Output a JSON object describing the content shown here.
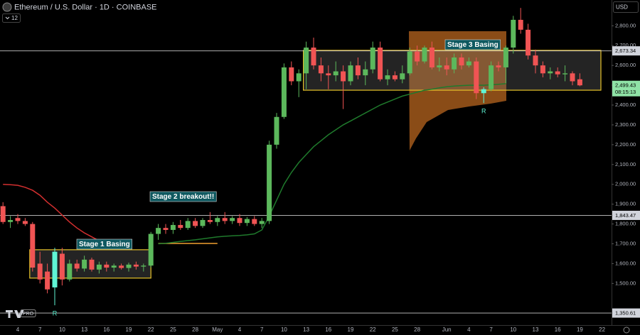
{
  "header": {
    "symbol": "Ethereum / U.S. Dollar · 1D · COINBASE",
    "indicators": "12",
    "currency": "USD",
    "badge": "PRO"
  },
  "chart_data": {
    "type": "candlestick",
    "categories": [
      null,
      null,
      "4",
      null,
      null,
      "7",
      null,
      null,
      "10",
      null,
      null,
      "13",
      null,
      null,
      "16",
      null,
      null,
      "19",
      null,
      null,
      "22",
      null,
      null,
      "25",
      null,
      null,
      "28",
      null,
      null,
      "May",
      null,
      null,
      "4",
      null,
      null,
      "7",
      null,
      null,
      "10",
      null,
      null,
      "13",
      null,
      null,
      "16",
      null,
      null,
      "19",
      null,
      null,
      "22",
      null,
      null,
      "25",
      null,
      null,
      "28",
      null,
      null,
      null,
      "Jun",
      null,
      null,
      "4",
      null,
      null,
      "7",
      null,
      null,
      "10",
      null,
      null,
      "13",
      null,
      null,
      "16",
      null,
      null,
      "19",
      null,
      null,
      "22"
    ],
    "open": [
      1890,
      1810,
      1830,
      1815,
      1800,
      1600,
      1560,
      1480,
      1650,
      1520,
      1600,
      1575,
      1620,
      1570,
      1595,
      1580,
      1590,
      1578,
      1595,
      1585,
      1590,
      1750,
      1780,
      1770,
      1795,
      1780,
      1815,
      1790,
      1820,
      1810,
      1830,
      1815,
      1830,
      1805,
      1825,
      1800,
      1815,
      2200,
      2340,
      2590,
      2520,
      2560,
      2690,
      2600,
      2560,
      2550,
      2570,
      2520,
      2600,
      2550,
      2580,
      2690,
      2530,
      2550,
      2530,
      2560,
      2670,
      2620,
      2690,
      2590,
      2600,
      2580,
      2640,
      2600,
      2620,
      2460,
      2480,
      2600,
      2590,
      2690,
      2830,
      2780,
      2650,
      2600,
      2560,
      2570,
      2555,
      2560,
      2530,
      null,
      null,
      null
    ],
    "high": [
      1910,
      1840,
      1850,
      1830,
      1810,
      1660,
      1600,
      1680,
      1680,
      1620,
      1620,
      1640,
      1630,
      1610,
      1610,
      1600,
      1600,
      1605,
      1610,
      1600,
      1760,
      1800,
      1800,
      1810,
      1820,
      1830,
      1830,
      1830,
      1860,
      1840,
      1860,
      1840,
      1850,
      1835,
      1840,
      1830,
      2220,
      2360,
      2610,
      2620,
      2580,
      2720,
      2740,
      2640,
      2600,
      2620,
      2600,
      2620,
      2640,
      2620,
      2720,
      2720,
      2580,
      2570,
      2600,
      2690,
      2700,
      2700,
      2720,
      2640,
      2640,
      2660,
      2660,
      2640,
      2640,
      2490,
      2620,
      2620,
      2700,
      2850,
      2890,
      2810,
      2680,
      2620,
      2590,
      2590,
      2600,
      2570,
      2560,
      null,
      null,
      null
    ],
    "low": [
      1800,
      1780,
      1800,
      1790,
      1560,
      1500,
      1450,
      1390,
      1490,
      1510,
      1560,
      1560,
      1560,
      1550,
      1560,
      1560,
      1570,
      1560,
      1570,
      1560,
      1580,
      1720,
      1750,
      1750,
      1770,
      1770,
      1780,
      1780,
      1800,
      1790,
      1800,
      1800,
      1790,
      1790,
      1790,
      1780,
      1800,
      2180,
      2330,
      2500,
      2440,
      2480,
      2580,
      2520,
      2480,
      2520,
      2380,
      2500,
      2530,
      2500,
      2560,
      2520,
      2500,
      2520,
      2510,
      2550,
      2600,
      2610,
      2580,
      2570,
      2550,
      2560,
      2580,
      2590,
      2430,
      2410,
      2470,
      2570,
      2510,
      2660,
      2760,
      2630,
      2560,
      2540,
      2530,
      2540,
      2520,
      2500,
      2495,
      null,
      null,
      null
    ],
    "close": [
      1810,
      1820,
      1815,
      1800,
      1580,
      1520,
      1470,
      1660,
      1520,
      1600,
      1575,
      1620,
      1570,
      1595,
      1580,
      1590,
      1578,
      1595,
      1585,
      1590,
      1750,
      1780,
      1770,
      1795,
      1780,
      1815,
      1790,
      1820,
      1810,
      1830,
      1815,
      1830,
      1805,
      1825,
      1800,
      1815,
      2200,
      2340,
      2590,
      2520,
      2560,
      2690,
      2600,
      2560,
      2550,
      2570,
      2520,
      2600,
      2550,
      2580,
      2690,
      2530,
      2550,
      2530,
      2560,
      2670,
      2620,
      2690,
      2590,
      2600,
      2580,
      2640,
      2600,
      2620,
      2460,
      2480,
      2600,
      2590,
      2690,
      2830,
      2780,
      2650,
      2600,
      2560,
      2570,
      2555,
      2560,
      2520,
      2499.43,
      null,
      null,
      null
    ],
    "up_color": "#5cb85c",
    "down_color": "#f05454",
    "reversal_color": "#5ff5d5",
    "reversals": [
      {
        "index": 7,
        "text": "R"
      },
      {
        "index": 65,
        "text": "R"
      }
    ],
    "lines": [
      {
        "color": "#d32f2f",
        "values": [
          2000,
          1998,
          1995,
          1985,
          1970,
          1945,
          1910,
          1880,
          1845,
          1810,
          1780,
          1755,
          1735,
          1715,
          1700,
          null,
          null,
          null,
          null,
          null,
          null,
          null,
          null,
          null,
          null,
          null,
          null,
          null,
          null,
          null,
          null,
          null,
          null,
          null,
          null,
          null,
          null,
          null,
          null,
          null,
          null,
          null,
          null,
          null,
          null,
          null,
          null,
          null,
          null,
          null,
          null,
          null,
          null,
          null,
          null,
          null,
          null,
          null,
          null,
          null,
          null,
          null,
          null,
          null,
          null,
          null,
          null,
          null,
          null,
          null,
          null,
          null,
          null,
          null,
          null,
          null,
          null,
          null,
          null,
          null,
          null,
          null
        ]
      },
      {
        "color": "#1f7a2c",
        "values": [
          null,
          null,
          null,
          null,
          null,
          null,
          null,
          null,
          null,
          null,
          null,
          null,
          null,
          null,
          null,
          null,
          null,
          null,
          null,
          null,
          null,
          1700,
          1703,
          1707,
          1712,
          1716,
          1720,
          1725,
          1730,
          1735,
          1738,
          1740,
          1742,
          1745,
          1750,
          1770,
          1840,
          1920,
          2000,
          2060,
          2110,
          2150,
          2190,
          2220,
          2250,
          2275,
          2300,
          2320,
          2340,
          2360,
          2380,
          2400,
          2415,
          2430,
          2445,
          2455,
          2465,
          2475,
          2480,
          2487,
          2492,
          2496,
          2498,
          2500,
          2500,
          2500,
          2502,
          2505,
          2508,
          null,
          null,
          null,
          null,
          null,
          null,
          null,
          null,
          null,
          null,
          null,
          null,
          null
        ]
      }
    ],
    "zones": [
      {
        "from": 4,
        "to": 20,
        "low": 1527,
        "high": 1670,
        "color": "#e6c229"
      },
      {
        "from": 41,
        "to": 81,
        "low": 2475,
        "high": 2676,
        "color": "#e6c229"
      }
    ],
    "segments": [
      {
        "from": 21,
        "to": 29,
        "value": 1702,
        "color": "#f0a030"
      }
    ],
    "annotations": [
      {
        "text": "Stage 1 Basing"
      },
      {
        "text": "Stage 2 breakout!!"
      },
      {
        "text": "Stage 3 Basing"
      }
    ],
    "ylim": [
      1290,
      2930
    ],
    "yticks": [
      {
        "value": 1500,
        "label": "1,500.00"
      },
      {
        "value": 1600,
        "label": "1,600.00"
      },
      {
        "value": 1700,
        "label": "1,700.00"
      },
      {
        "value": 1800,
        "label": "1,800.00"
      },
      {
        "value": 1900,
        "label": "1,900.00"
      },
      {
        "value": 2000,
        "label": "2,000.00"
      },
      {
        "value": 2100,
        "label": "2,100.00"
      },
      {
        "value": 2200,
        "label": "2,200.00"
      },
      {
        "value": 2300,
        "label": "2,300.00"
      },
      {
        "value": 2400,
        "label": "2,400.00"
      },
      {
        "value": 2500,
        "label": "2,500.00"
      },
      {
        "value": 2600,
        "label": "2,600.00"
      },
      {
        "value": 2700,
        "label": "2,700.00"
      },
      {
        "value": 2800,
        "label": "2,800.00"
      }
    ],
    "grid": false,
    "price_levels": [
      {
        "value": 2673.34,
        "label": "2,673.34",
        "line": true
      },
      {
        "value": 1843.47,
        "label": "1,843.47",
        "line": true
      },
      {
        "value": 1350.61,
        "label": "1,350.61",
        "line": true
      }
    ],
    "last_price": {
      "value": 2499.43,
      "label": "2,499.43",
      "countdown": "08:15:13",
      "color": "#8fe3a6"
    }
  }
}
